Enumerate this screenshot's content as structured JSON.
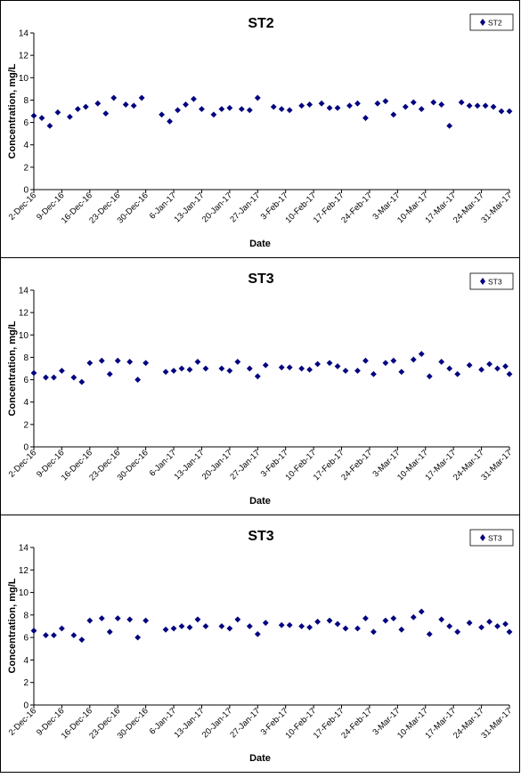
{
  "chart_data": [
    {
      "type": "scatter",
      "title": "ST2",
      "xlabel": "Date",
      "ylabel": "Concentration, mg/L",
      "ylim": [
        0,
        14
      ],
      "yticks": [
        "0",
        "2",
        "4",
        "6",
        "8",
        "10",
        "12",
        "14"
      ],
      "xlim": [
        "2016-12-02",
        "2017-03-31"
      ],
      "xticks": [
        "2-Dec-16",
        "9-Dec-16",
        "16-Dec-16",
        "23-Dec-16",
        "30-Dec-16",
        "6-Jan-17",
        "13-Jan-17",
        "20-Jan-17",
        "27-Jan-17",
        "3-Feb-17",
        "10-Feb-17",
        "17-Feb-17",
        "24-Feb-17",
        "3-Mar-17",
        "10-Mar-17",
        "17-Mar-17",
        "24-Mar-17",
        "31-Mar-17"
      ],
      "legend_position": "top-right",
      "grid": false,
      "series": [
        {
          "name": "ST2",
          "color": "#000080",
          "marker": "diamond",
          "x": [
            "2016-12-02",
            "2016-12-04",
            "2016-12-06",
            "2016-12-08",
            "2016-12-11",
            "2016-12-13",
            "2016-12-15",
            "2016-12-18",
            "2016-12-20",
            "2016-12-22",
            "2016-12-25",
            "2016-12-27",
            "2016-12-29",
            "2017-01-03",
            "2017-01-05",
            "2017-01-07",
            "2017-01-09",
            "2017-01-11",
            "2017-01-13",
            "2017-01-16",
            "2017-01-18",
            "2017-01-20",
            "2017-01-23",
            "2017-01-25",
            "2017-01-27",
            "2017-01-31",
            "2017-02-02",
            "2017-02-04",
            "2017-02-07",
            "2017-02-09",
            "2017-02-12",
            "2017-02-14",
            "2017-02-16",
            "2017-02-19",
            "2017-02-21",
            "2017-02-23",
            "2017-02-26",
            "2017-02-28",
            "2017-03-02",
            "2017-03-05",
            "2017-03-07",
            "2017-03-09",
            "2017-03-12",
            "2017-03-14",
            "2017-03-16",
            "2017-03-19",
            "2017-03-21",
            "2017-03-23",
            "2017-03-25",
            "2017-03-27",
            "2017-03-29",
            "2017-03-31"
          ],
          "y": [
            6.6,
            6.4,
            5.7,
            6.9,
            6.5,
            7.2,
            7.4,
            7.7,
            6.8,
            8.2,
            7.6,
            7.5,
            8.2,
            6.7,
            6.1,
            7.1,
            7.6,
            8.1,
            7.2,
            6.7,
            7.2,
            7.3,
            7.2,
            7.1,
            8.2,
            7.4,
            7.2,
            7.1,
            7.5,
            7.6,
            7.7,
            7.3,
            7.3,
            7.5,
            7.7,
            6.4,
            7.7,
            7.9,
            6.7,
            7.4,
            7.8,
            7.2,
            7.8,
            7.6,
            5.7,
            7.8,
            7.5,
            7.5,
            7.5,
            7.4,
            7.0,
            7.0
          ]
        }
      ]
    },
    {
      "type": "scatter",
      "title": "ST3",
      "xlabel": "Date",
      "ylabel": "Concentration, mg/L",
      "ylim": [
        0,
        14
      ],
      "yticks": [
        "0",
        "2",
        "4",
        "6",
        "8",
        "10",
        "12",
        "14"
      ],
      "xlim": [
        "2016-12-02",
        "2017-03-31"
      ],
      "xticks": [
        "2-Dec-16",
        "9-Dec-16",
        "16-Dec-16",
        "23-Dec-16",
        "30-Dec-16",
        "6-Jan-17",
        "13-Jan-17",
        "20-Jan-17",
        "27-Jan-17",
        "3-Feb-17",
        "10-Feb-17",
        "17-Feb-17",
        "24-Feb-17",
        "3-Mar-17",
        "10-Mar-17",
        "17-Mar-17",
        "24-Mar-17",
        "31-Mar-17"
      ],
      "legend_position": "top-right",
      "grid": false,
      "series": [
        {
          "name": "ST3",
          "color": "#000080",
          "marker": "diamond",
          "x": [
            "2016-12-02",
            "2016-12-05",
            "2016-12-07",
            "2016-12-09",
            "2016-12-12",
            "2016-12-14",
            "2016-12-16",
            "2016-12-19",
            "2016-12-21",
            "2016-12-23",
            "2016-12-26",
            "2016-12-28",
            "2016-12-30",
            "2017-01-04",
            "2017-01-06",
            "2017-01-08",
            "2017-01-10",
            "2017-01-12",
            "2017-01-14",
            "2017-01-18",
            "2017-01-20",
            "2017-01-22",
            "2017-01-25",
            "2017-01-27",
            "2017-01-29",
            "2017-02-02",
            "2017-02-04",
            "2017-02-07",
            "2017-02-09",
            "2017-02-11",
            "2017-02-14",
            "2017-02-16",
            "2017-02-18",
            "2017-02-21",
            "2017-02-23",
            "2017-02-25",
            "2017-02-28",
            "2017-03-02",
            "2017-03-04",
            "2017-03-07",
            "2017-03-09",
            "2017-03-11",
            "2017-03-14",
            "2017-03-16",
            "2017-03-18",
            "2017-03-21",
            "2017-03-24",
            "2017-03-26",
            "2017-03-28",
            "2017-03-30",
            "2017-03-31"
          ],
          "y": [
            6.6,
            6.2,
            6.2,
            6.8,
            6.2,
            5.8,
            7.5,
            7.7,
            6.5,
            7.7,
            7.6,
            6.0,
            7.5,
            6.7,
            6.8,
            7.0,
            6.9,
            7.6,
            7.0,
            7.0,
            6.8,
            7.6,
            7.0,
            6.3,
            7.3,
            7.1,
            7.1,
            7.0,
            6.9,
            7.4,
            7.5,
            7.2,
            6.8,
            6.8,
            7.7,
            6.5,
            7.5,
            7.7,
            6.7,
            7.8,
            8.3,
            6.3,
            7.6,
            7.0,
            6.5,
            7.3,
            6.9,
            7.4,
            7.0,
            7.2,
            6.5
          ]
        }
      ]
    },
    {
      "type": "scatter",
      "title": "ST3",
      "xlabel": "Date",
      "ylabel": "Concentration, mg/L",
      "ylim": [
        0,
        14
      ],
      "yticks": [
        "0",
        "2",
        "4",
        "6",
        "8",
        "10",
        "12",
        "14"
      ],
      "xlim": [
        "2016-12-02",
        "2017-03-31"
      ],
      "xticks": [
        "2-Dec-16",
        "9-Dec-16",
        "16-Dec-16",
        "23-Dec-16",
        "30-Dec-16",
        "6-Jan-17",
        "13-Jan-17",
        "20-Jan-17",
        "27-Jan-17",
        "3-Feb-17",
        "10-Feb-17",
        "17-Feb-17",
        "24-Feb-17",
        "3-Mar-17",
        "10-Mar-17",
        "17-Mar-17",
        "24-Mar-17",
        "31-Mar-17"
      ],
      "legend_position": "top-right",
      "grid": false,
      "series": [
        {
          "name": "ST3",
          "color": "#000080",
          "marker": "diamond",
          "x": [
            "2016-12-02",
            "2016-12-05",
            "2016-12-07",
            "2016-12-09",
            "2016-12-12",
            "2016-12-14",
            "2016-12-16",
            "2016-12-19",
            "2016-12-21",
            "2016-12-23",
            "2016-12-26",
            "2016-12-28",
            "2016-12-30",
            "2017-01-04",
            "2017-01-06",
            "2017-01-08",
            "2017-01-10",
            "2017-01-12",
            "2017-01-14",
            "2017-01-18",
            "2017-01-20",
            "2017-01-22",
            "2017-01-25",
            "2017-01-27",
            "2017-01-29",
            "2017-02-02",
            "2017-02-04",
            "2017-02-07",
            "2017-02-09",
            "2017-02-11",
            "2017-02-14",
            "2017-02-16",
            "2017-02-18",
            "2017-02-21",
            "2017-02-23",
            "2017-02-25",
            "2017-02-28",
            "2017-03-02",
            "2017-03-04",
            "2017-03-07",
            "2017-03-09",
            "2017-03-11",
            "2017-03-14",
            "2017-03-16",
            "2017-03-18",
            "2017-03-21",
            "2017-03-24",
            "2017-03-26",
            "2017-03-28",
            "2017-03-30",
            "2017-03-31"
          ],
          "y": [
            6.6,
            6.2,
            6.2,
            6.8,
            6.2,
            5.8,
            7.5,
            7.7,
            6.5,
            7.7,
            7.6,
            6.0,
            7.5,
            6.7,
            6.8,
            7.0,
            6.9,
            7.6,
            7.0,
            7.0,
            6.8,
            7.6,
            7.0,
            6.3,
            7.3,
            7.1,
            7.1,
            7.0,
            6.9,
            7.4,
            7.5,
            7.2,
            6.8,
            6.8,
            7.7,
            6.5,
            7.5,
            7.7,
            6.7,
            7.8,
            8.3,
            6.3,
            7.6,
            7.0,
            6.5,
            7.3,
            6.9,
            7.4,
            7.0,
            7.2,
            6.5
          ]
        }
      ]
    }
  ]
}
